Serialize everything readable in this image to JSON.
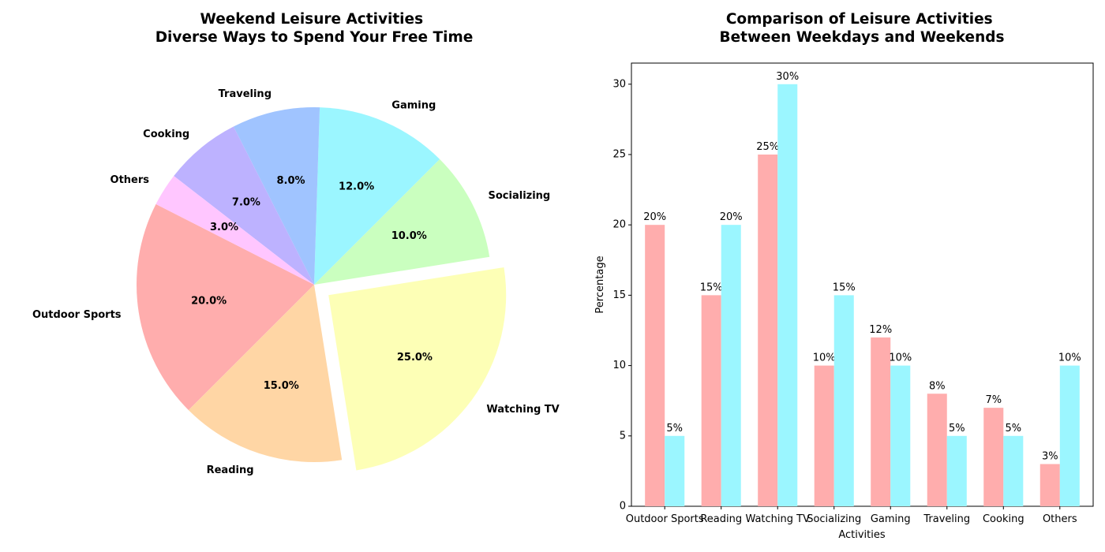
{
  "chart_data": [
    {
      "type": "pie",
      "title": "Weekend Leisure Activities\nDiverse Ways to Spend Your Free Time",
      "categories": [
        "Outdoor Sports",
        "Reading",
        "Watching TV",
        "Socializing",
        "Gaming",
        "Traveling",
        "Cooking",
        "Others"
      ],
      "values": [
        20,
        15,
        25,
        10,
        12,
        8,
        7,
        3
      ],
      "percent_labels": [
        "20.0%",
        "15.0%",
        "25.0%",
        "10.0%",
        "12.0%",
        "8.0%",
        "7.0%",
        "3.0%"
      ],
      "exploded": "Watching TV",
      "colors": [
        "#ffadad",
        "#ffd6a5",
        "#fdffb6",
        "#caffbf",
        "#9bf6ff",
        "#a0c4ff",
        "#bdb2ff",
        "#ffc6ff"
      ]
    },
    {
      "type": "bar",
      "title": "Comparison of Leisure Activities\nBetween Weekdays and Weekends",
      "xlabel": "Activities",
      "ylabel": "Percentage",
      "categories": [
        "Outdoor Sports",
        "Reading",
        "Watching TV",
        "Socializing",
        "Gaming",
        "Traveling",
        "Cooking",
        "Others"
      ],
      "series": [
        {
          "values": [
            20,
            15,
            25,
            10,
            12,
            8,
            7,
            3
          ],
          "labels": [
            "20%",
            "15%",
            "25%",
            "10%",
            "12%",
            "8%",
            "7%",
            "3%"
          ],
          "color": "#ffadad"
        },
        {
          "values": [
            5,
            20,
            30,
            15,
            10,
            5,
            5,
            10
          ],
          "labels": [
            "5%",
            "20%",
            "30%",
            "15%",
            "10%",
            "5%",
            "5%",
            "10%"
          ],
          "color": "#9bf6ff"
        }
      ],
      "ylim": [
        0,
        31.5
      ],
      "yticks": [
        0,
        5,
        10,
        15,
        20,
        25,
        30
      ],
      "grid": false,
      "legend": "none"
    }
  ]
}
